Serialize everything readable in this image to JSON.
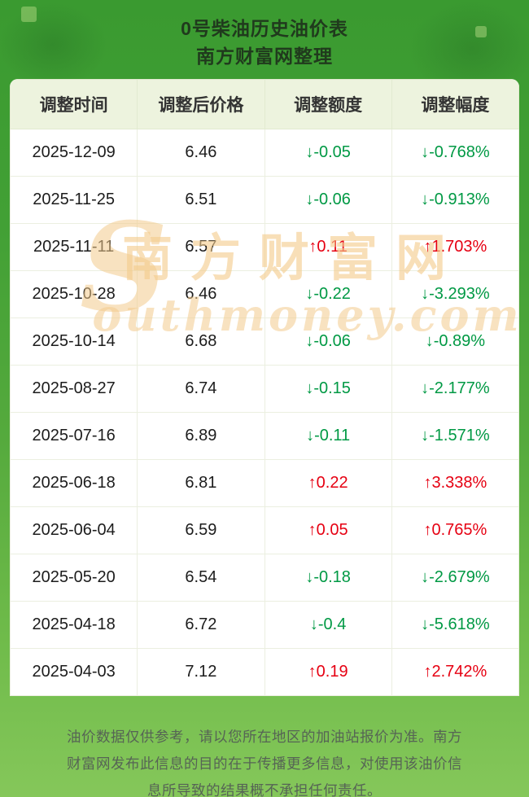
{
  "header": {
    "title": "0号柴油历史油价表",
    "subtitle": "南方财富网整理"
  },
  "icons": {
    "arrow_up": "↑",
    "arrow_down": "↓"
  },
  "watermark": {
    "initial": "S",
    "line1": "南方财富网",
    "line2": "outhmoney.com"
  },
  "footer": {
    "disclaimer": "油价数据仅供参考，请以您所在地区的加油站报价为准。南方财富网发布此信息的目的在于传播更多信息，对使用该油价信息所导致的结果概不承担任何责任。"
  },
  "colors": {
    "up": "#e60012",
    "down": "#009944",
    "page_green_top": "#3a9a30",
    "page_green_bottom": "#85c75a",
    "header_row_bg": "#edf3de",
    "watermark": "#f3cb8c"
  },
  "chart_data": {
    "type": "table",
    "title": "0号柴油历史油价表",
    "subtitle": "南方财富网整理",
    "columns": [
      "调整时间",
      "调整后价格",
      "调整额度",
      "调整幅度"
    ],
    "rows": [
      [
        "2025-12-09",
        "6.46",
        "-0.05",
        "-0.768%"
      ],
      [
        "2025-11-25",
        "6.51",
        "-0.06",
        "-0.913%"
      ],
      [
        "2025-11-11",
        "6.57",
        "0.11",
        "1.703%"
      ],
      [
        "2025-10-28",
        "6.46",
        "-0.22",
        "-3.293%"
      ],
      [
        "2025-10-14",
        "6.68",
        "-0.06",
        "-0.89%"
      ],
      [
        "2025-08-27",
        "6.74",
        "-0.15",
        "-2.177%"
      ],
      [
        "2025-07-16",
        "6.89",
        "-0.11",
        "-1.571%"
      ],
      [
        "2025-06-18",
        "6.81",
        "0.22",
        "3.338%"
      ],
      [
        "2025-06-04",
        "6.59",
        "0.05",
        "0.765%"
      ],
      [
        "2025-05-20",
        "6.54",
        "-0.18",
        "-2.679%"
      ],
      [
        "2025-04-18",
        "6.72",
        "-0.4",
        "-5.618%"
      ],
      [
        "2025-04-03",
        "7.12",
        "0.19",
        "2.742%"
      ]
    ]
  }
}
